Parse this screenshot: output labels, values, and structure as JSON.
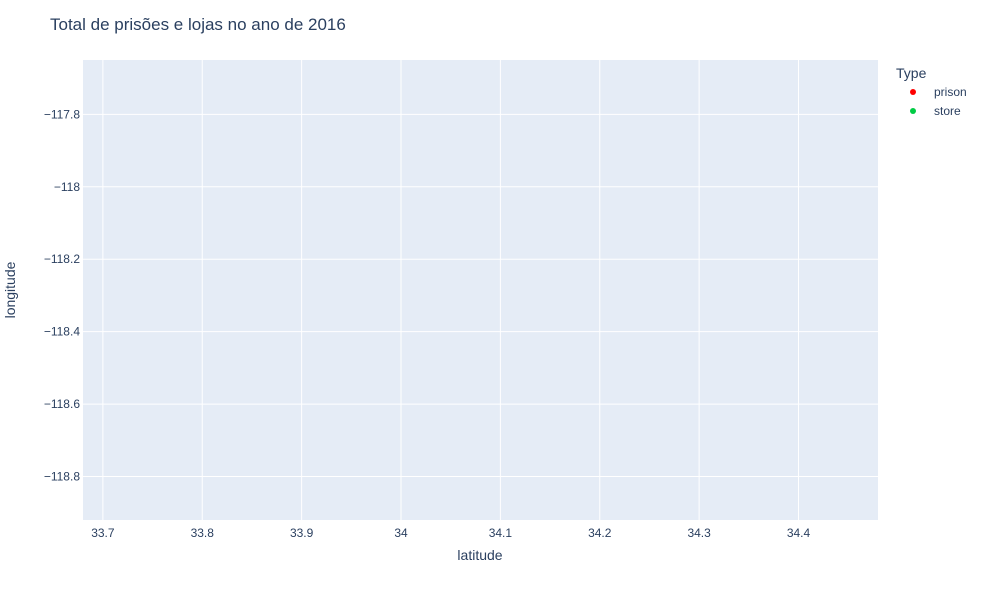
{
  "chart_data": {
    "type": "scatter",
    "title": "Total de prisões e lojas no ano de 2016",
    "xlabel": "latitude",
    "ylabel": "longitude",
    "xlim": [
      33.68,
      34.48
    ],
    "ylim": [
      -118.92,
      -117.65
    ],
    "x_ticks": [
      {
        "value": 33.7,
        "label": "33.7"
      },
      {
        "value": 33.8,
        "label": "33.8"
      },
      {
        "value": 33.9,
        "label": "33.9"
      },
      {
        "value": 34.0,
        "label": "34"
      },
      {
        "value": 34.1,
        "label": "34.1"
      },
      {
        "value": 34.2,
        "label": "34.2"
      },
      {
        "value": 34.3,
        "label": "34.3"
      },
      {
        "value": 34.4,
        "label": "34.4"
      }
    ],
    "y_ticks": [
      {
        "value": -117.8,
        "label": "−117.8"
      },
      {
        "value": -118.0,
        "label": "−118"
      },
      {
        "value": -118.2,
        "label": "−118.2"
      },
      {
        "value": -118.4,
        "label": "−118.4"
      },
      {
        "value": -118.6,
        "label": "−118.6"
      },
      {
        "value": -118.8,
        "label": "−118.8"
      }
    ],
    "grid": true,
    "legend_position": "top-right",
    "legend_title": "Type",
    "series": [
      {
        "name": "prison",
        "color": "#ff0000",
        "points": []
      },
      {
        "name": "store",
        "color": "#00cc44",
        "points": []
      }
    ]
  },
  "colors": {
    "plot_background": "#e5ecf6",
    "grid": "#ffffff",
    "text": "#2a3f5f"
  }
}
